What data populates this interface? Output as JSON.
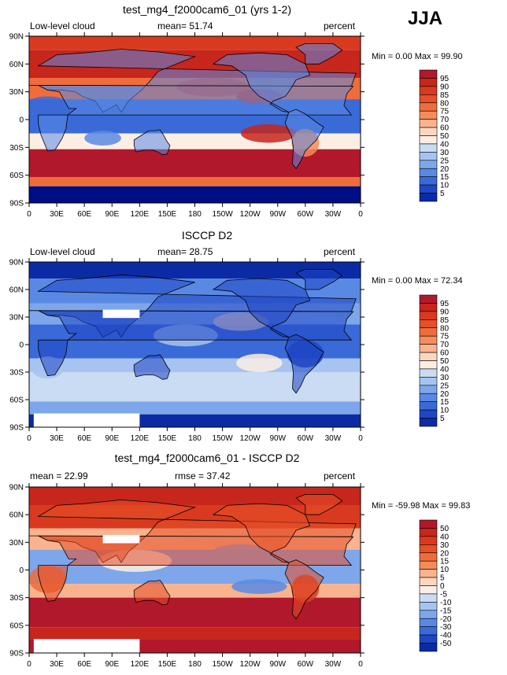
{
  "season": "JJA",
  "panels": [
    {
      "title": "test_mg4_f2000cam6_01 (yrs 1-2)",
      "left_label": "Low-level cloud",
      "center_label": "mean=  51.74",
      "right_label": "percent",
      "min_max": "Min =    0.00 Max =  99.90",
      "colorbar_labels": [
        "95",
        "90",
        "85",
        "80",
        "75",
        "70",
        "60",
        "50",
        "40",
        "30",
        "25",
        "20",
        "15",
        "10",
        "5"
      ]
    },
    {
      "title": "ISCCP D2",
      "left_label": "Low-level cloud",
      "center_label": "mean=  28.75",
      "right_label": "percent",
      "min_max": "Min =    0.00 Max =  72.34",
      "colorbar_labels": [
        "95",
        "90",
        "85",
        "80",
        "75",
        "70",
        "60",
        "50",
        "40",
        "30",
        "25",
        "20",
        "15",
        "10",
        "5"
      ]
    },
    {
      "title": "test_mg4_f2000cam6_01 - ISCCP D2",
      "left_label": "mean =  22.99",
      "center_label": "rmse =  37.42",
      "right_label": "percent",
      "min_max": "Min = -59.98 Max =  99.83",
      "colorbar_labels": [
        "50",
        "40",
        "30",
        "20",
        "15",
        "10",
        "5",
        "0",
        "-5",
        "-10",
        "-15",
        "-20",
        "-30",
        "-40",
        "-50"
      ]
    }
  ],
  "lat_ticks": [
    "90N",
    "60N",
    "30N",
    "0",
    "30S",
    "60S",
    "90S"
  ],
  "lon_ticks": [
    "0",
    "30E",
    "60E",
    "90E",
    "120E",
    "150E",
    "180",
    "150W",
    "120W",
    "90W",
    "60W",
    "30W",
    "0"
  ],
  "colors": {
    "scale": [
      "#b2182b",
      "#c7261c",
      "#d93a1f",
      "#e64f28",
      "#ef6d3c",
      "#f48d5a",
      "#f9b38e",
      "#fcd7c0",
      "#fdeee4",
      "#c9dcf4",
      "#a6c4ef",
      "#7ea6ea",
      "#5a89e4",
      "#3a6ad8",
      "#1f46c4",
      "#0b2ba4",
      "#000e86"
    ]
  }
}
